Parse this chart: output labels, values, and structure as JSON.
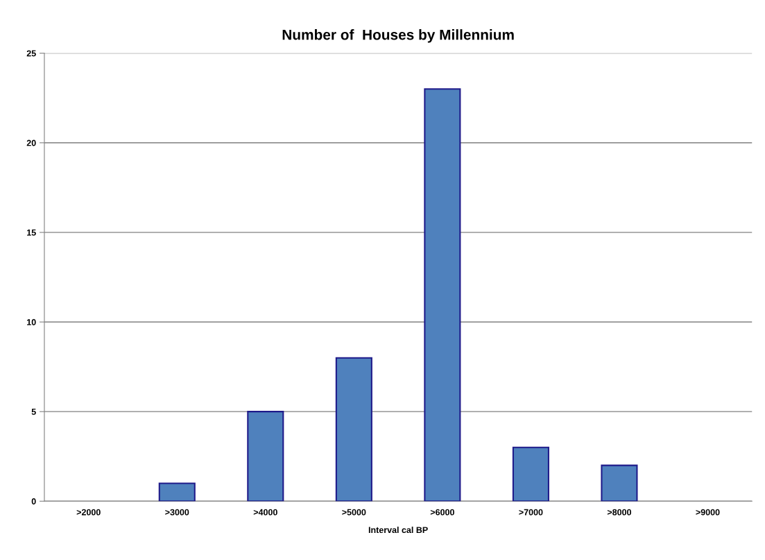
{
  "chart_data": {
    "type": "bar",
    "title": "Number of  Houses by Millennium",
    "xlabel": "Interval cal BP",
    "categories": [
      ">2000",
      ">3000",
      ">4000",
      ">5000",
      ">6000",
      ">7000",
      ">8000",
      ">9000"
    ],
    "values": [
      0,
      1,
      5,
      8,
      23,
      3,
      2,
      0
    ],
    "color": "#4f81bd",
    "ylim": [
      0,
      25
    ],
    "yticks": [
      0,
      5,
      10,
      15,
      20,
      25
    ],
    "grid": "y"
  }
}
